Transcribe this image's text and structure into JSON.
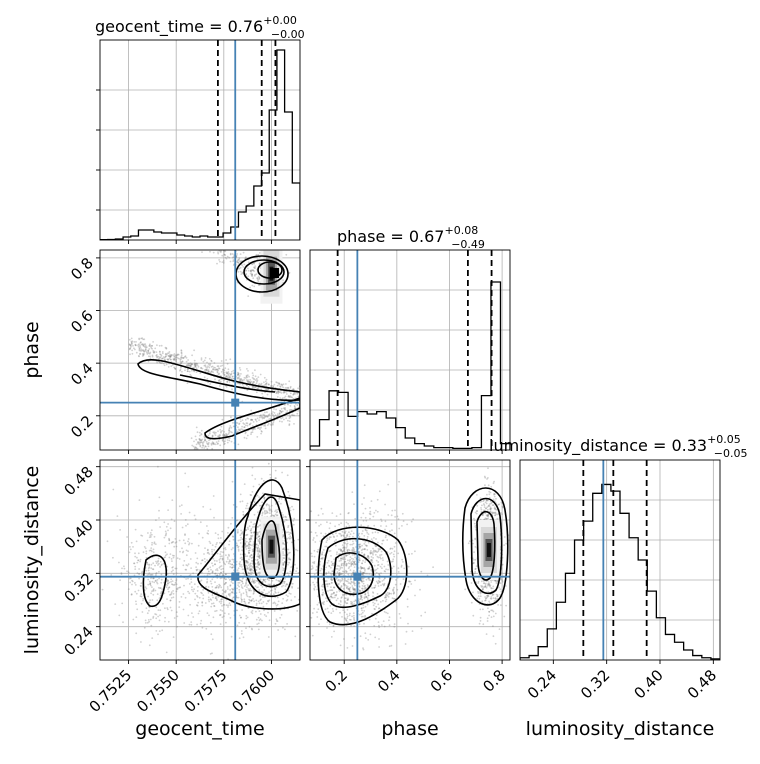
{
  "chart_data": {
    "type": "corner",
    "parameters": [
      "geocent_time",
      "phase",
      "luminosity_distance"
    ],
    "truths": {
      "geocent_time": 0.7581,
      "phase": 0.25,
      "luminosity_distance": 0.315
    },
    "truth_color": "#4682b4",
    "grid": true,
    "titles": [
      {
        "param": "geocent_time",
        "text": "geocent_time = 0.76",
        "plus": "+0.00",
        "minus": "−0.00"
      },
      {
        "param": "phase",
        "text": "phase = 0.67",
        "plus": "+0.08",
        "minus": "−0.49"
      },
      {
        "param": "luminosity_distance",
        "text": "luminosity_distance = 0.33",
        "plus": "+0.05",
        "minus": "−0.05"
      }
    ],
    "axes": {
      "geocent_time": {
        "label": "geocent_time",
        "range": [
          0.751,
          0.7615
        ],
        "ticks": [
          0.7525,
          0.755,
          0.7575,
          0.76
        ],
        "tick_labels": [
          "0.7525",
          "0.7550",
          "0.7575",
          "0.7600"
        ]
      },
      "phase": {
        "label": "phase",
        "range": [
          0.07,
          0.83
        ],
        "ticks": [
          0.2,
          0.4,
          0.6,
          0.8
        ],
        "tick_labels": [
          "0.2",
          "0.4",
          "0.6",
          "0.8"
        ]
      },
      "luminosity_distance": {
        "label": "luminosity_distance",
        "range": [
          0.19,
          0.49
        ],
        "ticks": [
          0.24,
          0.32,
          0.4,
          0.48
        ],
        "tick_labels": [
          "0.24",
          "0.32",
          "0.40",
          "0.48"
        ]
      }
    },
    "histograms": {
      "geocent_time": {
        "edges_range": [
          0.751,
          0.7615
        ],
        "counts": [
          0.3,
          0.5,
          1,
          3,
          4,
          10,
          10,
          8,
          7,
          7,
          5,
          4,
          3,
          4,
          3,
          3,
          7,
          13,
          28,
          34,
          54,
          67,
          130,
          190,
          128,
          57
        ],
        "ymax": 200,
        "quantiles": [
          0.75719,
          0.75949,
          0.76021
        ]
      },
      "phase": {
        "edges_range": [
          0.07,
          0.83
        ],
        "counts": [
          5,
          38,
          74,
          72,
          42,
          48,
          45,
          48,
          40,
          28,
          15,
          8,
          5,
          3,
          3,
          2,
          2,
          3,
          68,
          210,
          8
        ],
        "ymax": 250,
        "quantiles": [
          0.175,
          0.67,
          0.76
        ]
      },
      "luminosity_distance": {
        "edges_range": [
          0.19,
          0.49
        ],
        "counts": [
          2,
          4,
          12,
          28,
          52,
          78,
          108,
          125,
          150,
          158,
          152,
          132,
          110,
          90,
          62,
          38,
          23,
          16,
          9,
          4,
          2,
          1
        ],
        "ymax": 180,
        "quantiles": [
          0.285,
          0.33,
          0.38
        ]
      }
    },
    "contours_2d": [
      {
        "x": "geocent_time",
        "y": "phase",
        "clusters": [
          {
            "type": "band",
            "x0": 0.7563,
            "y0": 0.88,
            "x1": 0.759,
            "y1": 0.75,
            "w": 0.02,
            "n": 140
          },
          {
            "type": "band",
            "x0": 0.7525,
            "y0": 0.47,
            "x1": 0.7615,
            "y1": 0.27,
            "w": 0.02,
            "n": 700
          },
          {
            "type": "band",
            "x0": 0.7558,
            "y0": 0.08,
            "x1": 0.7615,
            "y1": 0.23,
            "w": 0.02,
            "n": 380
          },
          {
            "type": "blob",
            "cx": 0.7598,
            "cy": 0.75,
            "sx": 0.0005,
            "sy": 0.04,
            "n": 320
          }
        ],
        "peak": {
          "x": 0.76,
          "y": 0.74
        }
      },
      {
        "x": "geocent_time",
        "y": "luminosity_distance",
        "clusters": [
          {
            "type": "blob",
            "cx": 0.7598,
            "cy": 0.355,
            "sx": 0.0007,
            "sy": 0.045,
            "n": 1000
          },
          {
            "type": "blob",
            "cx": 0.7578,
            "cy": 0.31,
            "sx": 0.0014,
            "sy": 0.035,
            "n": 500
          },
          {
            "type": "blob",
            "cx": 0.7538,
            "cy": 0.31,
            "sx": 0.0008,
            "sy": 0.035,
            "n": 280
          },
          {
            "type": "blob",
            "cx": 0.756,
            "cy": 0.33,
            "sx": 0.0022,
            "sy": 0.05,
            "n": 250
          }
        ],
        "peak": {
          "x": 0.76,
          "y": 0.36
        }
      },
      {
        "x": "phase",
        "y": "luminosity_distance",
        "clusters": [
          {
            "type": "blob",
            "cx": 0.75,
            "cy": 0.355,
            "sx": 0.025,
            "sy": 0.04,
            "n": 1100
          },
          {
            "type": "blob",
            "cx": 0.22,
            "cy": 0.32,
            "sx": 0.08,
            "sy": 0.04,
            "n": 900
          },
          {
            "type": "blob",
            "cx": 0.3,
            "cy": 0.33,
            "sx": 0.09,
            "sy": 0.055,
            "n": 300
          }
        ],
        "peak": {
          "x": 0.75,
          "y": 0.355
        }
      }
    ]
  }
}
